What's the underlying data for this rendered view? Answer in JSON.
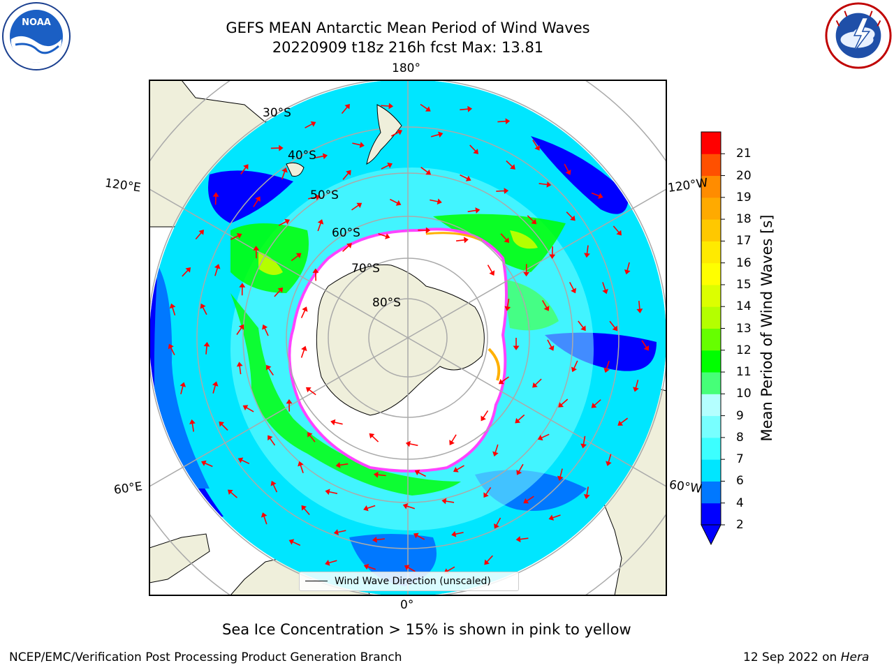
{
  "header": {
    "title_line1": "GEFS MEAN Antarctic Mean Period of Wind Waves",
    "title_line2": "20220909 t18z 216h fcst   Max: 13.81"
  },
  "logos": {
    "left": "noaa-logo",
    "right": "national-weather-service-logo"
  },
  "map": {
    "projection": "south-polar-stereographic",
    "longitude_labels": [
      "180°",
      "120°E",
      "120°W",
      "60°E",
      "60°W",
      "0°"
    ],
    "latitude_labels": [
      "30°S",
      "40°S",
      "50°S",
      "60°S",
      "70°S",
      "80°S"
    ],
    "arrow_color": "#ff0000",
    "land_color": "#efefdb",
    "ice_edge_colors": [
      "#ff44ff",
      "#ffb000",
      "#ffff00"
    ]
  },
  "colorbar": {
    "label": "Mean Period of Wind Waves [s]",
    "ticks": [
      "2",
      "4",
      "6",
      "7",
      "8",
      "9",
      "10",
      "11",
      "12",
      "13",
      "14",
      "15",
      "16",
      "17",
      "18",
      "19",
      "20",
      "21"
    ],
    "colors": [
      "#0000ff",
      "#0078ff",
      "#00e6ff",
      "#3cffff",
      "#78ffff",
      "#b4ffff",
      "#46ff78",
      "#00ff00",
      "#66ff00",
      "#b4ff00",
      "#dcff00",
      "#ffff00",
      "#ffea00",
      "#ffc800",
      "#ffaa00",
      "#ff8c00",
      "#ff5000",
      "#ff0000"
    ],
    "extend_color": "#0000ff"
  },
  "legend": {
    "label": "Wind Wave Direction (unscaled)"
  },
  "note": "Sea Ice Concentration > 15% is shown in pink to yellow",
  "footer": {
    "left": "NCEP/EMC/Verification Post Processing Product Generation Branch",
    "date": "12 Sep 2022 on ",
    "machine": "Hera"
  }
}
